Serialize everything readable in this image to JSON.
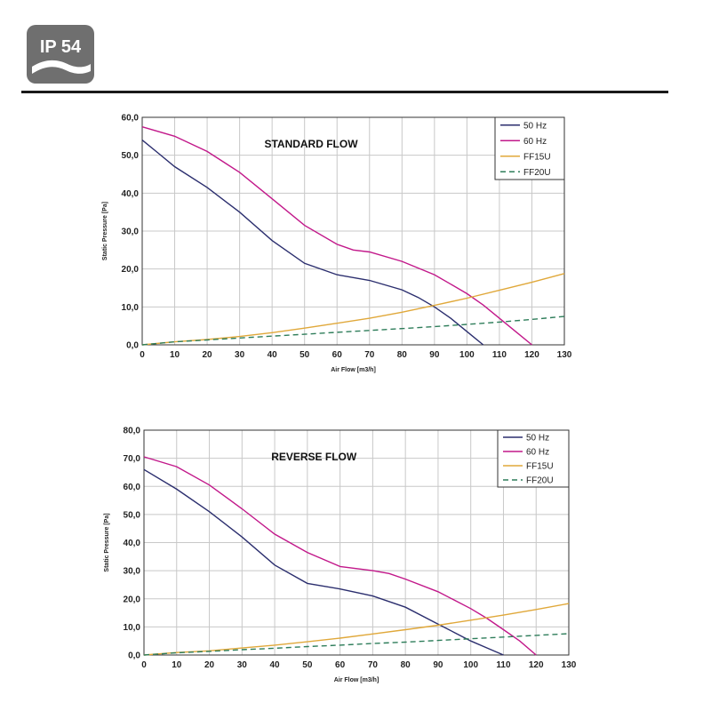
{
  "badge": {
    "text": "IP 54",
    "color": "#6f6f6f"
  },
  "colors": {
    "50 Hz": "#2b2e6e",
    "60 Hz": "#c2188a",
    "FF15U": "#e0a83a",
    "FF20U": "#2e7d5a"
  },
  "chart_data": [
    {
      "type": "line",
      "title": "STANDARD FLOW",
      "xlabel": "Air Flow [m3/h]",
      "ylabel": "Static Pressure [Pa]",
      "xlim": [
        0,
        130
      ],
      "ylim": [
        0,
        60
      ],
      "xticks": [
        "0",
        "10",
        "20",
        "30",
        "40",
        "50",
        "60",
        "70",
        "80",
        "90",
        "100",
        "110",
        "120",
        "130"
      ],
      "yticks": [
        "0,0",
        "10,0",
        "20,0",
        "30,0",
        "40,0",
        "50,0",
        "60,0"
      ],
      "grid": true,
      "legend": "top-right",
      "series": [
        {
          "name": "50 Hz",
          "style": "solid",
          "x": [
            0,
            5,
            10,
            20,
            30,
            40,
            50,
            60,
            70,
            80,
            85,
            90,
            95,
            100,
            105
          ],
          "y": [
            54,
            50.5,
            47,
            41.5,
            35,
            27.5,
            21.5,
            18.5,
            17,
            14.5,
            12.5,
            10,
            7,
            3.5,
            0
          ]
        },
        {
          "name": "60 Hz",
          "style": "solid",
          "x": [
            0,
            10,
            20,
            30,
            40,
            50,
            60,
            65,
            70,
            80,
            90,
            95,
            100,
            105,
            110,
            115,
            120
          ],
          "y": [
            57.5,
            55,
            51,
            45.5,
            38.5,
            31.5,
            26.5,
            25,
            24.5,
            22,
            18.5,
            16,
            13.5,
            10.5,
            7,
            3.5,
            0
          ]
        },
        {
          "name": "FF15U",
          "style": "solid",
          "x": [
            0,
            10,
            20,
            30,
            40,
            50,
            60,
            70,
            80,
            90,
            100,
            110,
            120,
            130
          ],
          "y": [
            0,
            0.8,
            1.4,
            2.2,
            3.2,
            4.4,
            5.7,
            7,
            8.6,
            10.4,
            12.3,
            14.4,
            16.5,
            18.8
          ]
        },
        {
          "name": "FF20U",
          "style": "dashed",
          "x": [
            0,
            10,
            20,
            30,
            40,
            50,
            60,
            70,
            80,
            90,
            100,
            110,
            120,
            130
          ],
          "y": [
            0,
            0.8,
            1.3,
            1.8,
            2.3,
            2.8,
            3.3,
            3.8,
            4.3,
            4.8,
            5.4,
            6,
            6.7,
            7.5
          ]
        }
      ]
    },
    {
      "type": "line",
      "title": "REVERSE FLOW",
      "xlabel": "Air Flow [m3/h]",
      "ylabel": "Static Pressure [Pa]",
      "xlim": [
        0,
        130
      ],
      "ylim": [
        0,
        80
      ],
      "xticks": [
        "0",
        "10",
        "20",
        "30",
        "40",
        "50",
        "60",
        "70",
        "80",
        "90",
        "100",
        "110",
        "120",
        "130"
      ],
      "yticks": [
        "0,0",
        "10,0",
        "20,0",
        "30,0",
        "40,0",
        "50,0",
        "60,0",
        "70,0",
        "80,0"
      ],
      "grid": true,
      "legend": "top-right",
      "series": [
        {
          "name": "50 Hz",
          "style": "solid",
          "x": [
            0,
            10,
            20,
            30,
            40,
            50,
            60,
            70,
            80,
            90,
            95,
            100,
            105,
            110
          ],
          "y": [
            66,
            59,
            51,
            42,
            32,
            25.5,
            23.5,
            21,
            17,
            11,
            8,
            5,
            2.5,
            0
          ]
        },
        {
          "name": "60 Hz",
          "style": "solid",
          "x": [
            0,
            10,
            20,
            30,
            40,
            50,
            60,
            70,
            75,
            80,
            90,
            100,
            105,
            110,
            115,
            120
          ],
          "y": [
            70.5,
            67,
            60.5,
            52,
            43,
            36.5,
            31.5,
            30,
            29,
            27,
            22.5,
            16.5,
            13,
            9,
            5,
            0
          ]
        },
        {
          "name": "FF15U",
          "style": "solid",
          "x": [
            0,
            10,
            20,
            30,
            40,
            50,
            60,
            70,
            80,
            90,
            100,
            110,
            120,
            130
          ],
          "y": [
            0,
            0.9,
            1.5,
            2.5,
            3.5,
            4.7,
            6,
            7.5,
            9,
            10.6,
            12.4,
            14.2,
            16.2,
            18.3
          ]
        },
        {
          "name": "FF20U",
          "style": "dashed",
          "x": [
            0,
            10,
            20,
            30,
            40,
            50,
            60,
            70,
            80,
            90,
            100,
            110,
            120,
            130
          ],
          "y": [
            0,
            0.8,
            1.3,
            1.9,
            2.4,
            3,
            3.5,
            4.1,
            4.6,
            5.2,
            5.8,
            6.4,
            7,
            7.6
          ]
        }
      ]
    }
  ]
}
